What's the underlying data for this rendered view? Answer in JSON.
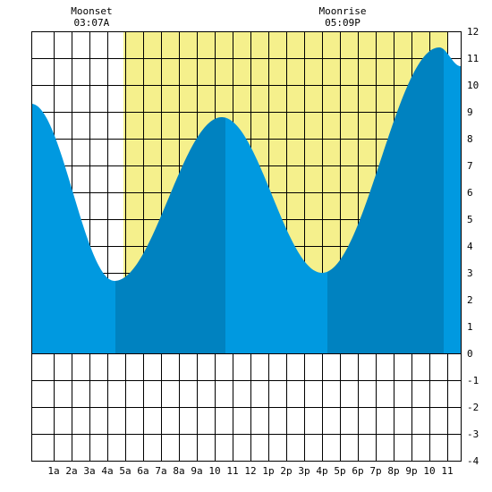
{
  "chart_data": {
    "type": "area",
    "title": "",
    "xlabel": "",
    "ylabel": "",
    "x_unit": "hour of day",
    "xlim": [
      -0.25,
      23.75
    ],
    "ylim": [
      -4,
      12
    ],
    "x_tick_values": [
      1,
      2,
      3,
      4,
      5,
      6,
      7,
      8,
      9,
      10,
      11,
      12,
      13,
      14,
      15,
      16,
      17,
      18,
      19,
      20,
      21,
      22,
      23
    ],
    "x_tick_labels": [
      "1a",
      "2a",
      "3a",
      "4a",
      "5a",
      "6a",
      "7a",
      "8a",
      "9a",
      "10",
      "11",
      "12",
      "1p",
      "2p",
      "3p",
      "4p",
      "5p",
      "6p",
      "7p",
      "8p",
      "9p",
      "10",
      "11"
    ],
    "y_ticks": [
      12,
      11,
      10,
      9,
      8,
      7,
      6,
      5,
      4,
      3,
      2,
      1,
      0,
      -1,
      -2,
      -3,
      -4
    ],
    "grid": true,
    "daylight_band": {
      "start": 4.9,
      "end": 23.0
    },
    "annotations": [
      {
        "label": "Moonset",
        "time": "03:07A",
        "x": 3.12
      },
      {
        "label": "Moonrise",
        "time": "05:09P",
        "x": 17.15
      }
    ],
    "tide_extremes": [
      {
        "type": "high",
        "x": -0.25,
        "y": 9.3
      },
      {
        "type": "low",
        "x": 4.4,
        "y": 2.7
      },
      {
        "type": "high",
        "x": 10.4,
        "y": 8.8
      },
      {
        "type": "low",
        "x": 16.0,
        "y": 3.0
      },
      {
        "type": "high",
        "x": 22.55,
        "y": 11.4
      },
      {
        "type": "end",
        "x": 23.75,
        "y": 10.7
      }
    ],
    "shade_transitions": [
      4.45,
      10.6,
      16.3,
      22.8
    ],
    "colors": {
      "daylight": "#f5f08c",
      "tide_light": "#0099e0",
      "tide_dark": "#0082c0",
      "grid": "#000000",
      "background": "#ffffff"
    }
  }
}
